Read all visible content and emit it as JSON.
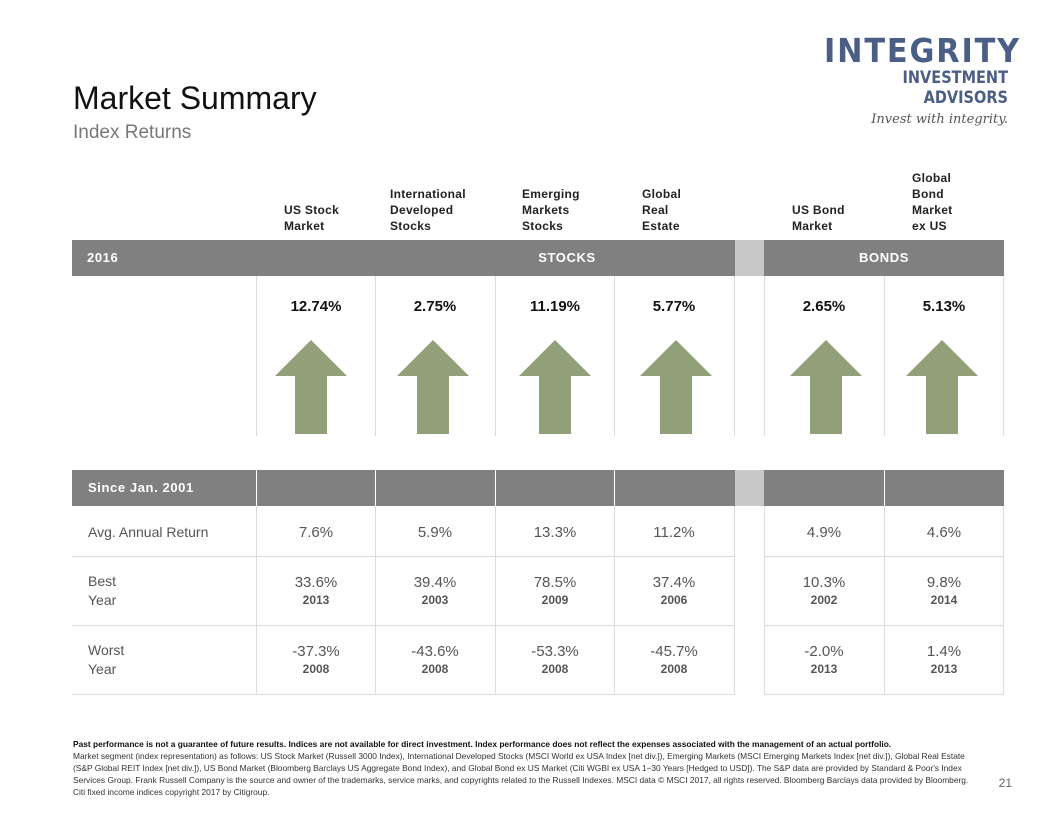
{
  "logo": {
    "line1": "INTEGRITY",
    "line2": "INVESTMENT ADVISORS",
    "tagline": "Invest with integrity."
  },
  "title": "Market Summary",
  "subtitle": "Index Returns",
  "columns": [
    {
      "header": "US Stock\nMarket",
      "pct_2016": "12.74%",
      "avg": "7.6%",
      "best": "33.6%",
      "best_year": "2013",
      "worst": "-37.3%",
      "worst_year": "2008"
    },
    {
      "header": "International\nDeveloped\nStocks",
      "pct_2016": "2.75%",
      "avg": "5.9%",
      "best": "39.4%",
      "best_year": "2003",
      "worst": "-43.6%",
      "worst_year": "2008"
    },
    {
      "header": "Emerging\nMarkets\nStocks",
      "pct_2016": "11.19%",
      "avg": "13.3%",
      "best": "78.5%",
      "best_year": "2009",
      "worst": "-53.3%",
      "worst_year": "2008"
    },
    {
      "header": "Global\nReal\nEstate",
      "pct_2016": "5.77%",
      "avg": "11.2%",
      "best": "37.4%",
      "best_year": "2006",
      "worst": "-45.7%",
      "worst_year": "2008"
    },
    {
      "header": "US Bond\nMarket",
      "pct_2016": "2.65%",
      "avg": "4.9%",
      "best": "10.3%",
      "best_year": "2002",
      "worst": "-2.0%",
      "worst_year": "2013"
    },
    {
      "header": "Global\nBond\nMarket\nex US",
      "pct_2016": "5.13%",
      "avg": "4.6%",
      "best": "9.8%",
      "best_year": "2014",
      "worst": "1.4%",
      "worst_year": "2013"
    }
  ],
  "bar_2016": {
    "year": "2016",
    "stocks": "STOCKS",
    "bonds": "BONDS"
  },
  "bar_since": {
    "label": "Since Jan. 2001"
  },
  "row_labels": {
    "avg": "Avg. Annual Return",
    "best": "Best\nYear",
    "worst": "Worst\nYear"
  },
  "colors": {
    "arrow": "#92a07a",
    "bar": "#808080",
    "gap": "#c8c8c8",
    "logo": "#4a5e86"
  },
  "footnote": {
    "bold": "Past performance is not a guarantee of future results. Indices are not available for direct investment. Index performance does not reflect the expenses associated with the management of an actual portfolio.",
    "body": "Market segment (index representation) as follows: US Stock Market (Russell 3000 Index), International Developed Stocks (MSCI World ex USA Index [net div.]), Emerging Markets (MSCI Emerging Markets Index [net div.]), Global Real Estate (S&P Global REIT Index [net div.]), US Bond Market (Bloomberg Barclays US Aggregate Bond Index), and Global Bond ex US Market (Citi WGBI ex USA 1−30 Years [Hedged to USD]). The S&P data are provided by Standard & Poor's Index Services Group. Frank Russell Company is the source and owner of the trademarks, service marks, and copyrights related to the Russell Indexes. MSCI data © MSCI 2017, all rights reserved. Bloomberg Barclays data provided by Bloomberg. Citi fixed income indices copyright 2017 by Citigroup."
  },
  "page_number": "21"
}
